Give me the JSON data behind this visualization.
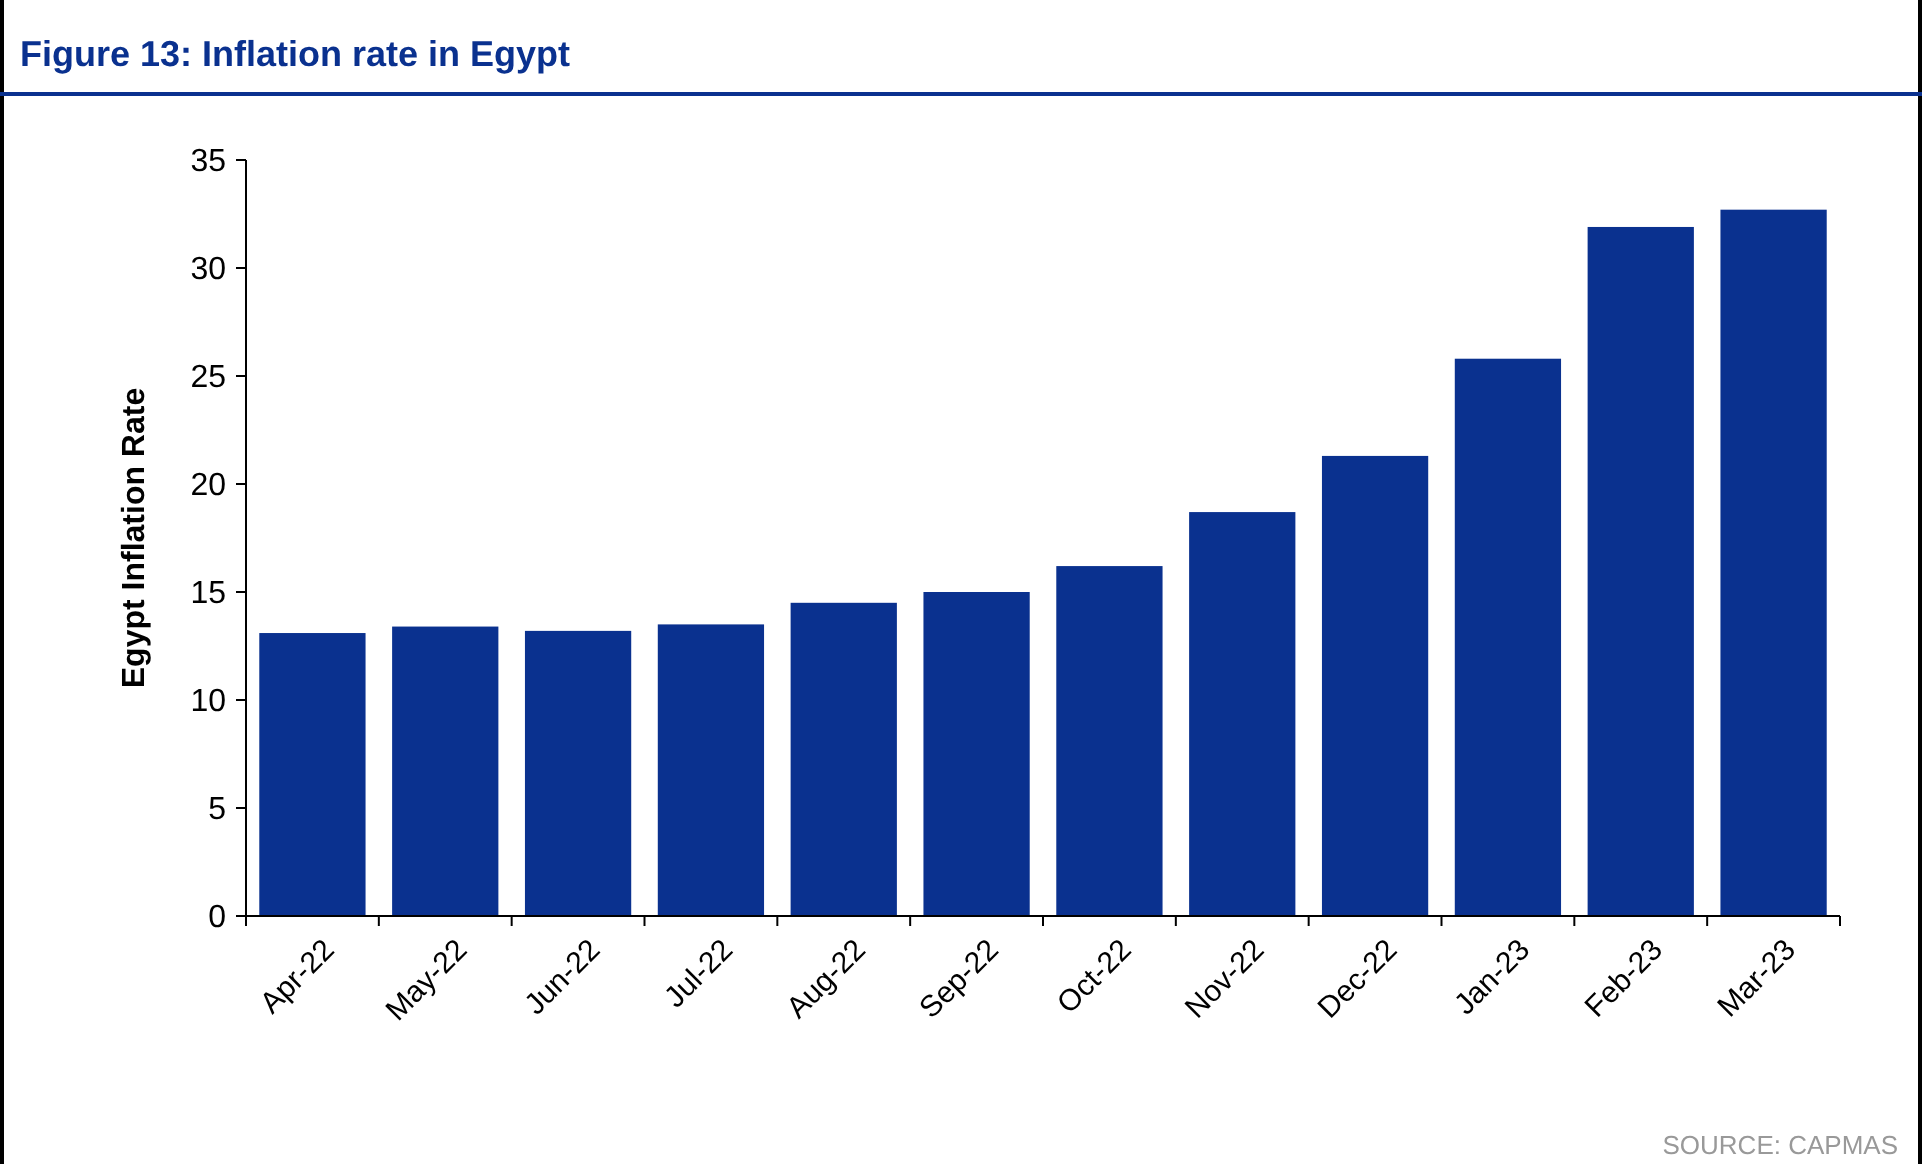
{
  "chart_data": {
    "type": "bar",
    "title": "Figure 13: Inflation rate in Egypt",
    "ylabel": "Egypt Inflation Rate",
    "categories": [
      "Apr-22",
      "May-22",
      "Jun-22",
      "Jul-22",
      "Aug-22",
      "Sep-22",
      "Oct-22",
      "Nov-22",
      "Dec-22",
      "Jan-23",
      "Feb-23",
      "Mar-23"
    ],
    "values": [
      13.1,
      13.4,
      13.2,
      13.5,
      14.5,
      15.0,
      16.2,
      18.7,
      21.3,
      25.8,
      31.9,
      32.7
    ],
    "color": "#0a318f",
    "ylim": [
      0,
      35
    ],
    "yticks": [
      0,
      5,
      10,
      15,
      20,
      25,
      30,
      35
    ],
    "grid": false,
    "annotations": [
      "SOURCE: CAPMAS"
    ]
  }
}
